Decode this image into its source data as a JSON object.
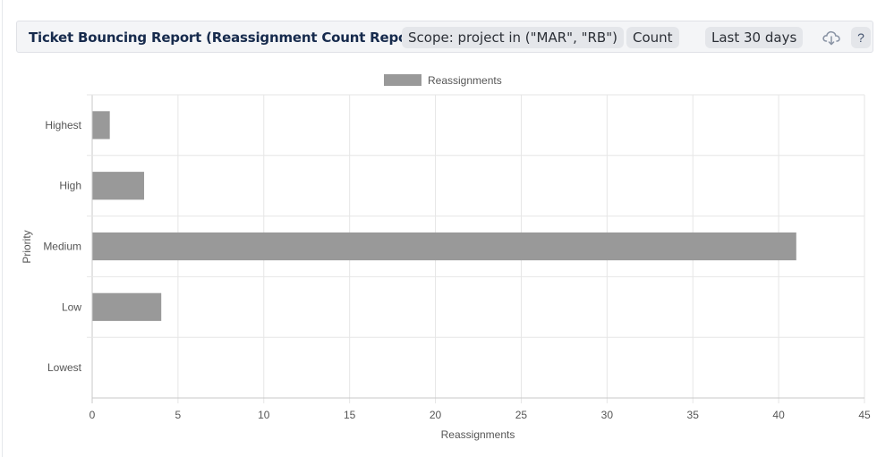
{
  "header": {
    "title": "Ticket Bouncing Report (Reassignment Count Report)",
    "scope_label": "Scope: project in (\"MAR\", \"RB\")",
    "metric_label": "Count",
    "period_label": "Last 30 days",
    "download_icon": "cloud-download-icon",
    "help_label": "?"
  },
  "colors": {
    "bar": "#999999",
    "grid": "#e6e6e6",
    "axis": "#c8c8c8",
    "text": "#555555"
  },
  "chart_data": {
    "type": "bar",
    "orientation": "horizontal",
    "categories": [
      "Highest",
      "High",
      "Medium",
      "Low",
      "Lowest"
    ],
    "series": [
      {
        "name": "Reassignments",
        "values": [
          1,
          3,
          41,
          4,
          0
        ]
      }
    ],
    "xlabel": "Reassignments",
    "ylabel": "Priority",
    "xlim": [
      0,
      45
    ],
    "xticks": [
      0,
      5,
      10,
      15,
      20,
      25,
      30,
      35,
      40,
      45
    ],
    "grid": true,
    "legend_position": "top-center"
  }
}
